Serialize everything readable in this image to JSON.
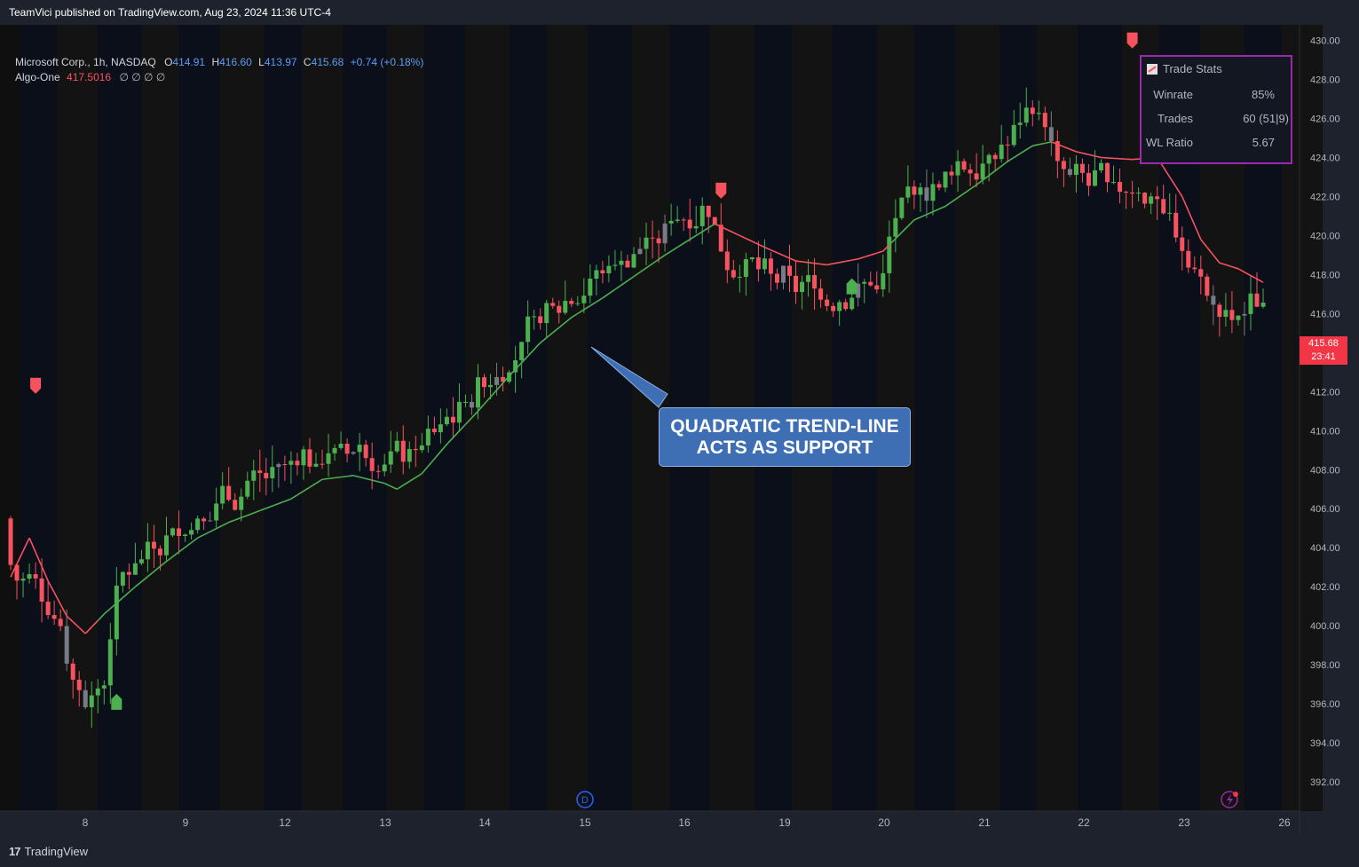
{
  "header": {
    "published": "TeamVici published on TradingView.com, Aug 23, 2024 11:36 UTC-4"
  },
  "legend": {
    "symbol": "Microsoft Corp., 1h, NASDAQ",
    "o_label": "O",
    "o_value": "414.91",
    "h_label": "H",
    "h_value": "416.60",
    "l_label": "L",
    "l_value": "413.97",
    "c_label": "C",
    "c_value": "415.68",
    "change": "+0.74 (+0.18%)",
    "indicator_name": "Algo-One",
    "indicator_value": "417.5016",
    "indicator_extras": "∅ ∅ ∅ ∅"
  },
  "trade_stats": {
    "title": "Trade Stats",
    "rows": [
      {
        "key": "Winrate",
        "value": "85%"
      },
      {
        "key": "Trades",
        "value": "60 (51|9)"
      },
      {
        "key": "WL Ratio",
        "value": "5.67"
      }
    ]
  },
  "callout": {
    "line1": "QUADRATIC TREND-LINE",
    "line2": "ACTS AS SUPPORT"
  },
  "price_tag": {
    "price": "415.68",
    "countdown": "23:41"
  },
  "footer": {
    "brand": "TradingView"
  },
  "markers": {
    "dividend_label": "D"
  },
  "colors": {
    "bull": "#4caf50",
    "bear": "#f7525f",
    "neutral": "#787b86",
    "trend_up": "#4caf50",
    "trend_down": "#f7525f",
    "stats_border": "#9c27b0",
    "callout_bg": "#3e6fb5"
  },
  "chart_data": {
    "type": "candlestick",
    "title": "",
    "ylim": [
      390.5,
      430.8
    ],
    "y_ticks": [
      "430.00",
      "428.00",
      "426.00",
      "424.00",
      "422.00",
      "420.00",
      "418.00",
      "416.00",
      "414.00",
      "412.00",
      "410.00",
      "408.00",
      "406.00",
      "404.00",
      "402.00",
      "400.00",
      "398.00",
      "396.00",
      "394.00",
      "392.00"
    ],
    "x_ticks": [
      "8",
      "9",
      "12",
      "13",
      "14",
      "15",
      "16",
      "19",
      "20",
      "21",
      "22",
      "23",
      "26"
    ],
    "trend_line": [
      {
        "t": 0,
        "v": 402.5
      },
      {
        "t": 3,
        "v": 404.5
      },
      {
        "t": 6,
        "v": 402.3
      },
      {
        "t": 9,
        "v": 400.5
      },
      {
        "t": 12,
        "v": 399.6
      },
      {
        "t": 15,
        "v": 400.6
      },
      {
        "t": 20,
        "v": 402.0
      },
      {
        "t": 25,
        "v": 403.3
      },
      {
        "t": 30,
        "v": 404.5
      },
      {
        "t": 35,
        "v": 405.3
      },
      {
        "t": 40,
        "v": 405.9
      },
      {
        "t": 45,
        "v": 406.5
      },
      {
        "t": 50,
        "v": 407.5
      },
      {
        "t": 55,
        "v": 407.7
      },
      {
        "t": 60,
        "v": 407.3
      },
      {
        "t": 62,
        "v": 407.0
      },
      {
        "t": 66,
        "v": 407.8
      },
      {
        "t": 70,
        "v": 409.3
      },
      {
        "t": 75,
        "v": 411.0
      },
      {
        "t": 80,
        "v": 412.8
      },
      {
        "t": 85,
        "v": 414.5
      },
      {
        "t": 90,
        "v": 415.8
      },
      {
        "t": 95,
        "v": 416.8
      },
      {
        "t": 100,
        "v": 417.9
      },
      {
        "t": 105,
        "v": 419.0
      },
      {
        "t": 110,
        "v": 420.0
      },
      {
        "t": 113,
        "v": 420.6
      },
      {
        "t": 117,
        "v": 420.0
      },
      {
        "t": 121,
        "v": 419.4
      },
      {
        "t": 126,
        "v": 418.7
      },
      {
        "t": 131,
        "v": 418.5
      },
      {
        "t": 136,
        "v": 418.8
      },
      {
        "t": 140,
        "v": 419.2
      },
      {
        "t": 145,
        "v": 420.8
      },
      {
        "t": 150,
        "v": 421.5
      },
      {
        "t": 155,
        "v": 422.6
      },
      {
        "t": 160,
        "v": 423.8
      },
      {
        "t": 164,
        "v": 424.6
      },
      {
        "t": 167,
        "v": 424.8
      },
      {
        "t": 171,
        "v": 424.3
      },
      {
        "t": 175,
        "v": 424.0
      },
      {
        "t": 180,
        "v": 423.9
      },
      {
        "t": 184,
        "v": 424.0
      },
      {
        "t": 188,
        "v": 422.0
      },
      {
        "t": 191,
        "v": 419.8
      },
      {
        "t": 194,
        "v": 418.6
      },
      {
        "t": 197,
        "v": 418.3
      },
      {
        "t": 201,
        "v": 417.6
      }
    ],
    "down_segments": [
      [
        0,
        13
      ],
      [
        113,
        140
      ],
      [
        167,
        201
      ]
    ],
    "markers": [
      {
        "t": 4,
        "kind": "sell",
        "price": 412.3
      },
      {
        "t": 17,
        "kind": "buy",
        "price": 396.1
      },
      {
        "t": 114,
        "kind": "sell",
        "price": 422.3
      },
      {
        "t": 135,
        "kind": "buy",
        "price": 417.4
      },
      {
        "t": 180,
        "kind": "sell",
        "price": 430.0
      }
    ]
  }
}
